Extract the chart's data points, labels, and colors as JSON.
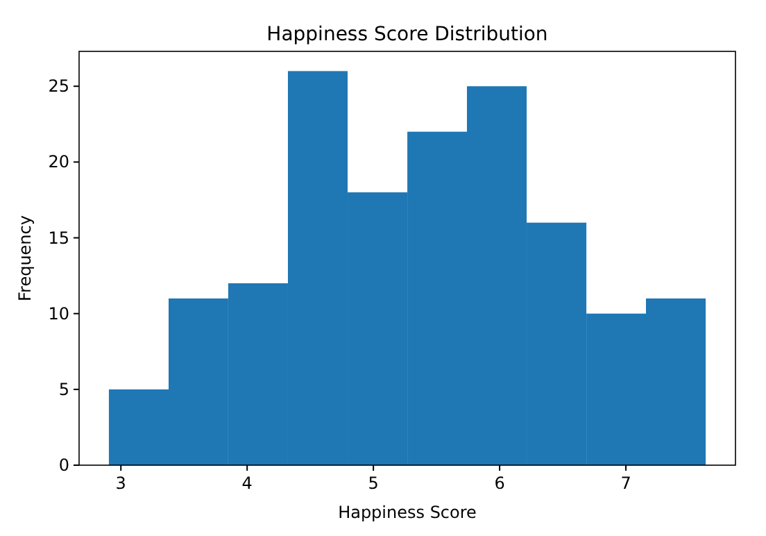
{
  "chart_data": {
    "type": "histogram",
    "title": "Happiness Score Distribution",
    "xlabel": "Happiness Score",
    "ylabel": "Frequency",
    "color": "#1f77b4",
    "bins": [
      2.905,
      3.378,
      3.85,
      4.323,
      4.796,
      5.269,
      5.741,
      6.214,
      6.687,
      7.159,
      7.632
    ],
    "values": [
      5,
      11,
      12,
      26,
      18,
      22,
      25,
      16,
      10,
      11
    ],
    "xlim": [
      2.669,
      7.868
    ],
    "ylim": [
      0,
      27.3
    ],
    "xticks": [
      3,
      4,
      5,
      6,
      7
    ],
    "yticks": [
      0,
      5,
      10,
      15,
      20,
      25
    ],
    "grid": false
  }
}
